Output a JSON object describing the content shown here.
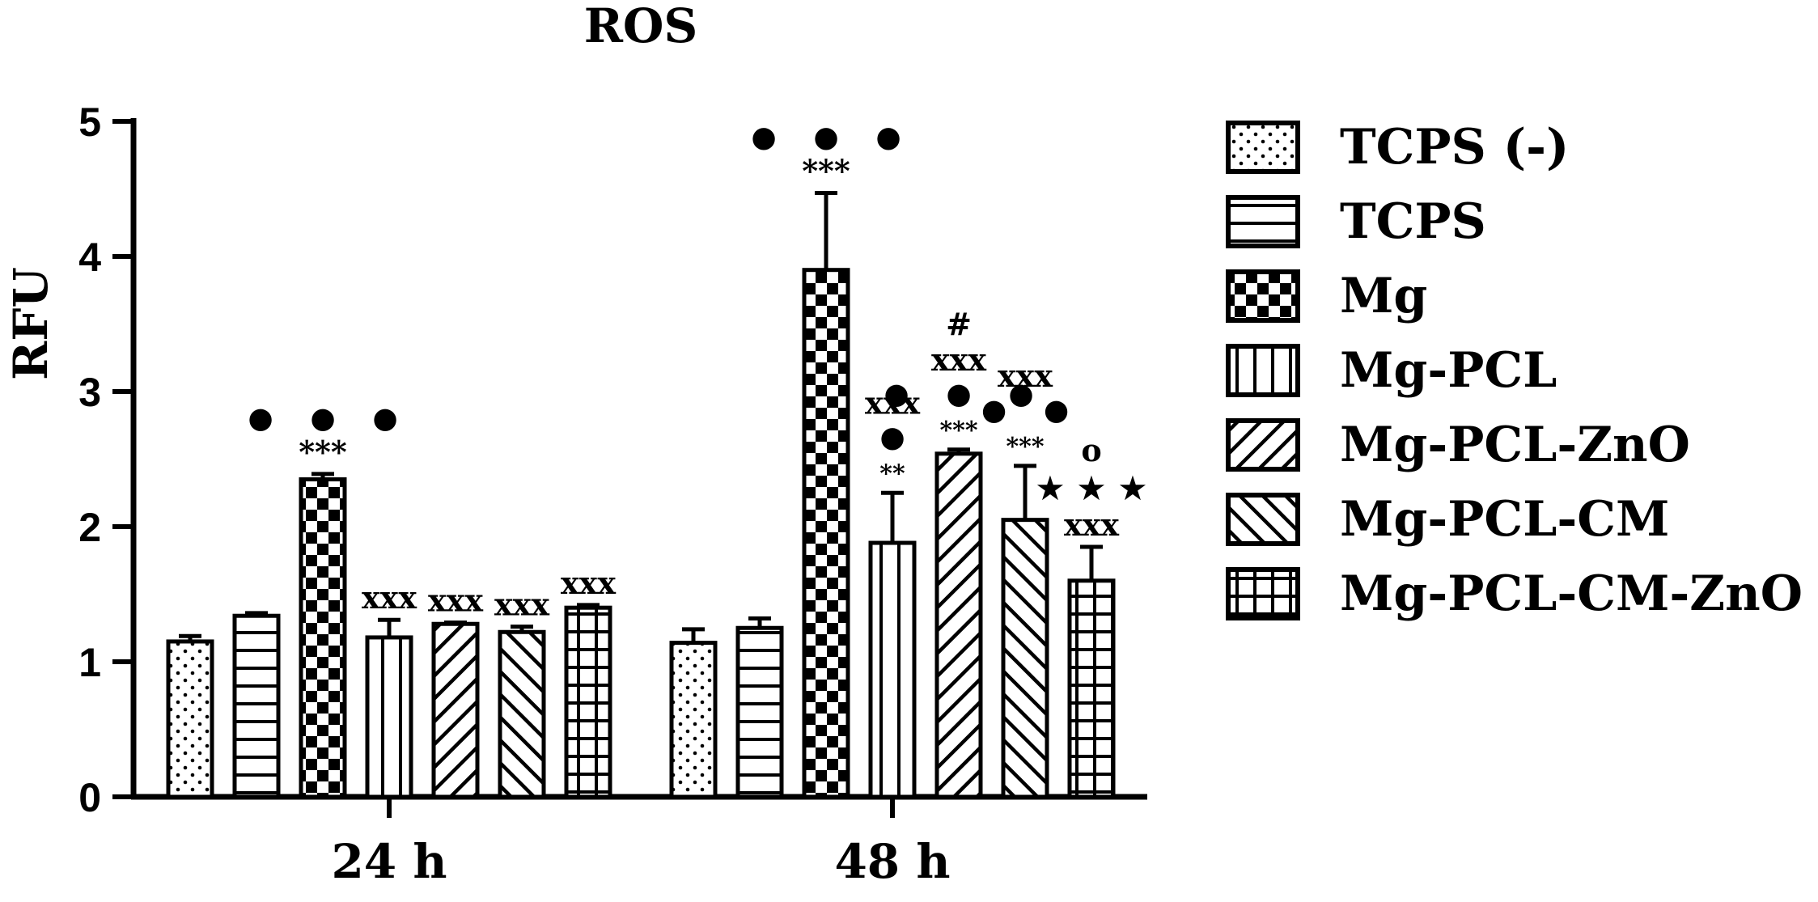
{
  "chart_data": {
    "type": "bar",
    "title": "ROS",
    "ylabel": "RFU",
    "xlabel": "",
    "ylim": [
      0,
      5
    ],
    "yticks": [
      "0",
      "1",
      "2",
      "3",
      "4",
      "5"
    ],
    "grid": false,
    "legend_position": "right",
    "categories": [
      "24 h",
      "48 h"
    ],
    "series": [
      {
        "name": "TCPS (-)",
        "pattern": "dots",
        "values": [
          1.15,
          1.14
        ],
        "errors": [
          0.04,
          0.1
        ]
      },
      {
        "name": "TCPS",
        "pattern": "horizontal-lines",
        "values": [
          1.34,
          1.25
        ],
        "errors": [
          0.02,
          0.07
        ]
      },
      {
        "name": "Mg",
        "pattern": "checkerboard",
        "values": [
          2.35,
          3.9
        ],
        "errors": [
          0.04,
          0.57
        ]
      },
      {
        "name": "Mg-PCL",
        "pattern": "vertical-lines",
        "values": [
          1.18,
          1.88
        ],
        "errors": [
          0.13,
          0.37
        ]
      },
      {
        "name": "Mg-PCL-ZnO",
        "pattern": "diagonal-up",
        "values": [
          1.28,
          2.54
        ],
        "errors": [
          0.01,
          0.03
        ]
      },
      {
        "name": "Mg-PCL-CM",
        "pattern": "diagonal-down",
        "values": [
          1.22,
          2.05
        ],
        "errors": [
          0.04,
          0.4
        ]
      },
      {
        "name": "Mg-PCL-CM-ZnO",
        "pattern": "grid",
        "values": [
          1.4,
          1.6
        ],
        "errors": [
          0.02,
          0.25
        ]
      }
    ],
    "annotations": [
      {
        "category": 0,
        "series": 2,
        "lines": [
          "•••",
          "***"
        ]
      },
      {
        "category": 0,
        "series": 3,
        "lines": [
          "xxx"
        ]
      },
      {
        "category": 0,
        "series": 4,
        "lines": [
          "xxx"
        ]
      },
      {
        "category": 0,
        "series": 5,
        "lines": [
          "xxx"
        ]
      },
      {
        "category": 0,
        "series": 6,
        "lines": [
          "xxx"
        ]
      },
      {
        "category": 1,
        "series": 2,
        "lines": [
          "•••",
          "***"
        ]
      },
      {
        "category": 1,
        "series": 3,
        "lines": [
          "xxx",
          "•",
          "**"
        ]
      },
      {
        "category": 1,
        "series": 4,
        "lines": [
          "#",
          "xxx",
          "•••",
          "***"
        ]
      },
      {
        "category": 1,
        "series": 5,
        "lines": [
          "xxx",
          "••",
          "***"
        ]
      },
      {
        "category": 1,
        "series": 6,
        "lines": [
          "o",
          "★★★",
          "xxx"
        ]
      }
    ]
  }
}
